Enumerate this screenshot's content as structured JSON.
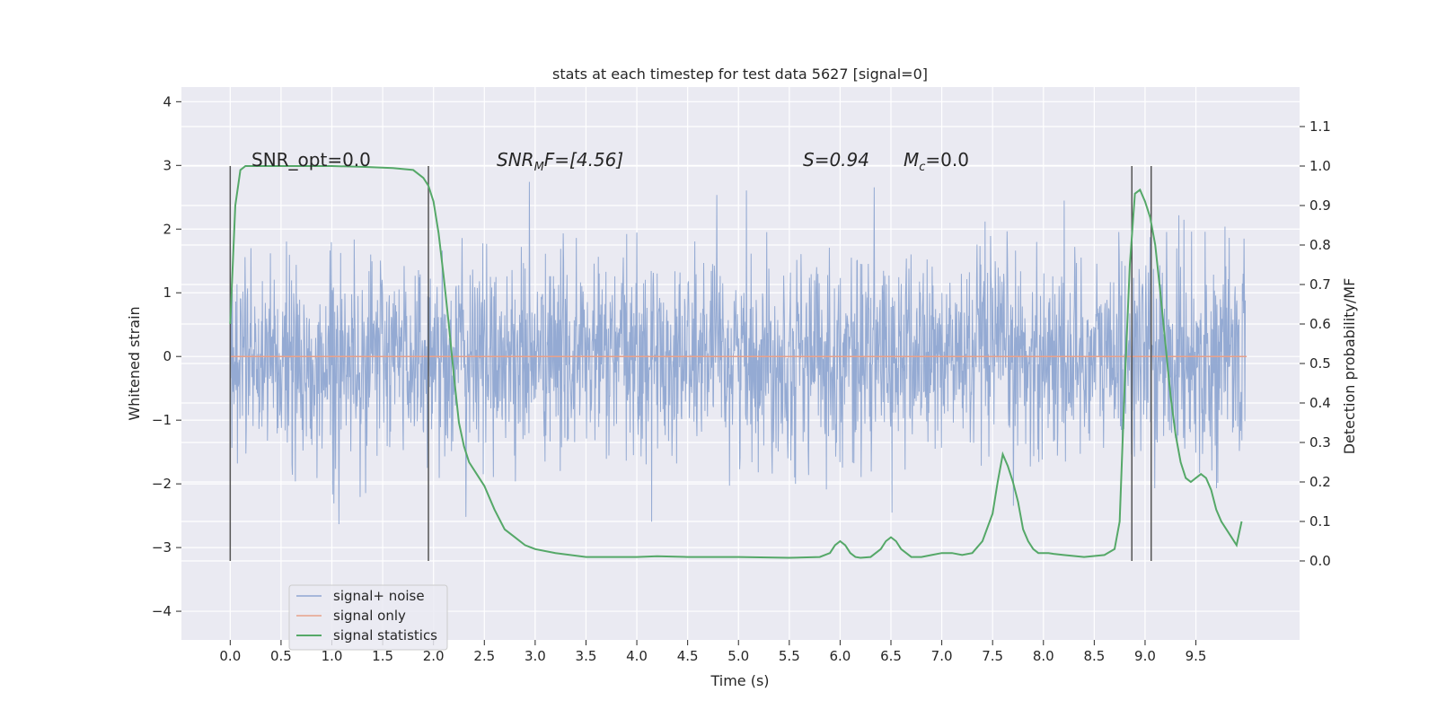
{
  "chart_data": {
    "type": "line",
    "title": "stats at each timestep for test data 5627 [signal=0]",
    "xlabel": "Time (s)",
    "ylabel_left": "Whitened strain",
    "ylabel_right": "Detection probability/MF",
    "xlim": [
      -0.48,
      10.52
    ],
    "ylim_left": [
      -4.45,
      4.23
    ],
    "ylim_right": [
      -0.2,
      1.2
    ],
    "xticks": [
      "0.0",
      "0.5",
      "1.0",
      "1.5",
      "2.0",
      "2.5",
      "3.0",
      "3.5",
      "4.0",
      "4.5",
      "5.0",
      "5.5",
      "6.0",
      "6.5",
      "7.0",
      "7.5",
      "8.0",
      "8.5",
      "9.0",
      "9.5"
    ],
    "yticks_left": [
      "4",
      "3",
      "2",
      "1",
      "0",
      "−1",
      "−2",
      "−3",
      "−4"
    ],
    "yticks_right": [
      "1.1",
      "1.0",
      "0.9",
      "0.8",
      "0.7",
      "0.6",
      "0.5",
      "0.4",
      "0.3",
      "0.2",
      "0.1",
      "0.0"
    ],
    "grid": true,
    "legend_position": "lower-left",
    "colors": {
      "noise": "#8fa6d1",
      "signal": "#e8a18a",
      "stats": "#55a868",
      "background": "#eaeaf2",
      "grid": "#ffffff",
      "vlines": "#555555"
    },
    "annotations": {
      "snr_opt": "SNR_opt=0.0",
      "snr_mf_prefix": "SNR",
      "snr_mf_sub": "M",
      "snr_mf_suffix": "F=[4.56]",
      "s_value": "S=0.94",
      "mc_prefix": "M",
      "mc_sub": "c",
      "mc_suffix": "=0.0"
    },
    "series": [
      {
        "name": "signal+ noise",
        "description": "whitened strain, random noise with std ~0.75 over 0–10 s"
      },
      {
        "name": "signal only",
        "x": [
          0,
          10
        ],
        "y": [
          0,
          0
        ]
      },
      {
        "name": "signal statistics",
        "x": [
          0.0,
          0.05,
          0.1,
          0.15,
          0.2,
          0.3,
          0.5,
          0.8,
          1.0,
          1.3,
          1.6,
          1.8,
          1.9,
          1.95,
          2.0,
          2.05,
          2.1,
          2.15,
          2.2,
          2.25,
          2.3,
          2.35,
          2.4,
          2.5,
          2.6,
          2.7,
          2.8,
          2.9,
          3.0,
          3.2,
          3.5,
          3.8,
          4.0,
          4.2,
          4.5,
          5.0,
          5.5,
          5.8,
          5.9,
          5.95,
          6.0,
          6.05,
          6.1,
          6.15,
          6.2,
          6.3,
          6.4,
          6.45,
          6.5,
          6.55,
          6.6,
          6.65,
          6.7,
          6.8,
          6.9,
          7.0,
          7.1,
          7.2,
          7.3,
          7.4,
          7.5,
          7.55,
          7.6,
          7.65,
          7.7,
          7.75,
          7.8,
          7.85,
          7.9,
          7.95,
          8.0,
          8.05,
          8.1,
          8.2,
          8.4,
          8.6,
          8.7,
          8.75,
          8.8,
          8.85,
          8.9,
          8.95,
          9.0,
          9.05,
          9.1,
          9.15,
          9.2,
          9.25,
          9.3,
          9.35,
          9.4,
          9.45,
          9.5,
          9.55,
          9.6,
          9.65,
          9.7,
          9.75,
          9.8,
          9.85,
          9.9,
          9.95
        ],
        "y": [
          0.6,
          0.9,
          0.99,
          1.0,
          1.0,
          1.0,
          1.0,
          1.0,
          1.0,
          0.998,
          0.995,
          0.99,
          0.97,
          0.95,
          0.91,
          0.83,
          0.72,
          0.6,
          0.47,
          0.35,
          0.29,
          0.25,
          0.23,
          0.19,
          0.13,
          0.08,
          0.06,
          0.04,
          0.03,
          0.02,
          0.01,
          0.01,
          0.01,
          0.012,
          0.01,
          0.01,
          0.008,
          0.01,
          0.02,
          0.04,
          0.05,
          0.04,
          0.02,
          0.01,
          0.008,
          0.01,
          0.03,
          0.05,
          0.06,
          0.05,
          0.03,
          0.02,
          0.01,
          0.01,
          0.015,
          0.02,
          0.02,
          0.015,
          0.02,
          0.05,
          0.12,
          0.2,
          0.27,
          0.24,
          0.2,
          0.15,
          0.08,
          0.05,
          0.03,
          0.02,
          0.02,
          0.02,
          0.018,
          0.015,
          0.01,
          0.015,
          0.03,
          0.1,
          0.45,
          0.75,
          0.93,
          0.94,
          0.91,
          0.87,
          0.8,
          0.68,
          0.55,
          0.42,
          0.32,
          0.25,
          0.21,
          0.2,
          0.21,
          0.22,
          0.21,
          0.18,
          0.13,
          0.1,
          0.08,
          0.06,
          0.04,
          0.1
        ]
      }
    ],
    "vertical_lines_x": [
      0.0,
      1.95,
      8.87,
      9.06
    ]
  }
}
